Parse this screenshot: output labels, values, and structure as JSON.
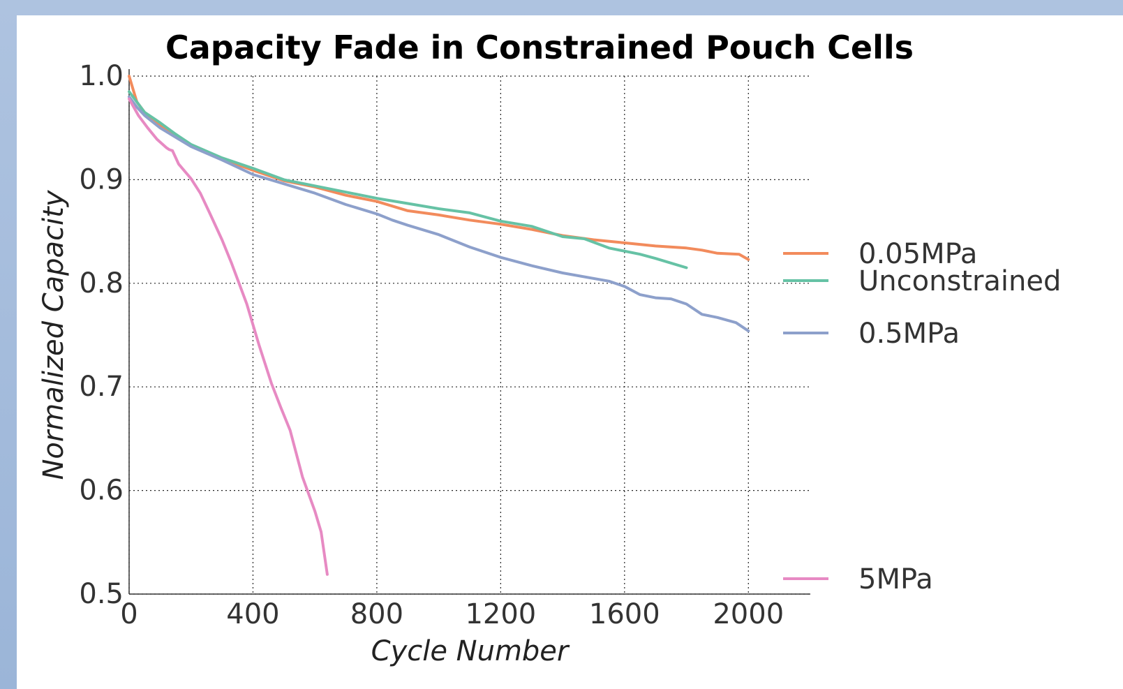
{
  "chart_data": {
    "type": "line",
    "title": "Capacity Fade in Constrained Pouch Cells",
    "xlabel": "Cycle Number",
    "ylabel": "Normalized Capacity",
    "xlim": [
      0,
      2200
    ],
    "ylim": [
      0.5,
      1.0
    ],
    "xticks": [
      "0",
      "400",
      "800",
      "1200",
      "1600",
      "2000"
    ],
    "xtick_values": [
      0,
      400,
      800,
      1200,
      1600,
      2000
    ],
    "yticks": [
      "0.5",
      "0.6",
      "0.7",
      "0.8",
      "0.9",
      "1.0"
    ],
    "ytick_values": [
      0.5,
      0.6,
      0.7,
      0.8,
      0.9,
      1.0
    ],
    "grid": true,
    "legend_position": "right",
    "series": [
      {
        "name": "0.05MPa",
        "color": "#f28b5c",
        "points": [
          [
            0,
            1.0
          ],
          [
            10,
            0.99
          ],
          [
            25,
            0.975
          ],
          [
            50,
            0.965
          ],
          [
            100,
            0.953
          ],
          [
            150,
            0.942
          ],
          [
            200,
            0.933
          ],
          [
            250,
            0.926
          ],
          [
            300,
            0.92
          ],
          [
            400,
            0.909
          ],
          [
            500,
            0.899
          ],
          [
            600,
            0.893
          ],
          [
            700,
            0.885
          ],
          [
            800,
            0.879
          ],
          [
            900,
            0.87
          ],
          [
            1000,
            0.866
          ],
          [
            1100,
            0.861
          ],
          [
            1200,
            0.857
          ],
          [
            1300,
            0.852
          ],
          [
            1400,
            0.846
          ],
          [
            1500,
            0.842
          ],
          [
            1600,
            0.839
          ],
          [
            1700,
            0.836
          ],
          [
            1800,
            0.834
          ],
          [
            1850,
            0.832
          ],
          [
            1900,
            0.829
          ],
          [
            1970,
            0.828
          ],
          [
            2000,
            0.823
          ]
        ]
      },
      {
        "name": "Unconstrained",
        "color": "#66c2a5",
        "points": [
          [
            0,
            0.985
          ],
          [
            25,
            0.975
          ],
          [
            50,
            0.965
          ],
          [
            100,
            0.955
          ],
          [
            150,
            0.944
          ],
          [
            200,
            0.934
          ],
          [
            300,
            0.921
          ],
          [
            400,
            0.911
          ],
          [
            500,
            0.9
          ],
          [
            600,
            0.894
          ],
          [
            700,
            0.888
          ],
          [
            800,
            0.882
          ],
          [
            900,
            0.877
          ],
          [
            1000,
            0.872
          ],
          [
            1100,
            0.868
          ],
          [
            1200,
            0.86
          ],
          [
            1300,
            0.855
          ],
          [
            1400,
            0.845
          ],
          [
            1470,
            0.843
          ],
          [
            1550,
            0.834
          ],
          [
            1650,
            0.828
          ],
          [
            1700,
            0.824
          ],
          [
            1800,
            0.815
          ]
        ]
      },
      {
        "name": "0.5MPa",
        "color": "#8da0cb",
        "points": [
          [
            0,
            0.98
          ],
          [
            25,
            0.97
          ],
          [
            50,
            0.962
          ],
          [
            100,
            0.95
          ],
          [
            150,
            0.941
          ],
          [
            200,
            0.932
          ],
          [
            300,
            0.919
          ],
          [
            400,
            0.905
          ],
          [
            500,
            0.896
          ],
          [
            600,
            0.887
          ],
          [
            700,
            0.876
          ],
          [
            800,
            0.867
          ],
          [
            850,
            0.861
          ],
          [
            900,
            0.856
          ],
          [
            1000,
            0.847
          ],
          [
            1100,
            0.835
          ],
          [
            1200,
            0.825
          ],
          [
            1300,
            0.817
          ],
          [
            1400,
            0.81
          ],
          [
            1550,
            0.802
          ],
          [
            1600,
            0.797
          ],
          [
            1650,
            0.789
          ],
          [
            1700,
            0.786
          ],
          [
            1750,
            0.785
          ],
          [
            1800,
            0.78
          ],
          [
            1850,
            0.77
          ],
          [
            1900,
            0.767
          ],
          [
            1960,
            0.762
          ],
          [
            2000,
            0.754
          ]
        ]
      },
      {
        "name": "5MPa",
        "color": "#e78ac3",
        "points": [
          [
            0,
            0.978
          ],
          [
            30,
            0.962
          ],
          [
            60,
            0.95
          ],
          [
            90,
            0.939
          ],
          [
            120,
            0.931
          ],
          [
            130,
            0.929
          ],
          [
            140,
            0.928
          ],
          [
            160,
            0.915
          ],
          [
            200,
            0.901
          ],
          [
            230,
            0.887
          ],
          [
            260,
            0.868
          ],
          [
            300,
            0.842
          ],
          [
            330,
            0.82
          ],
          [
            380,
            0.78
          ],
          [
            420,
            0.74
          ],
          [
            460,
            0.703
          ],
          [
            490,
            0.68
          ],
          [
            520,
            0.658
          ],
          [
            560,
            0.613
          ],
          [
            600,
            0.58
          ],
          [
            620,
            0.56
          ],
          [
            640,
            0.519
          ]
        ]
      }
    ]
  }
}
